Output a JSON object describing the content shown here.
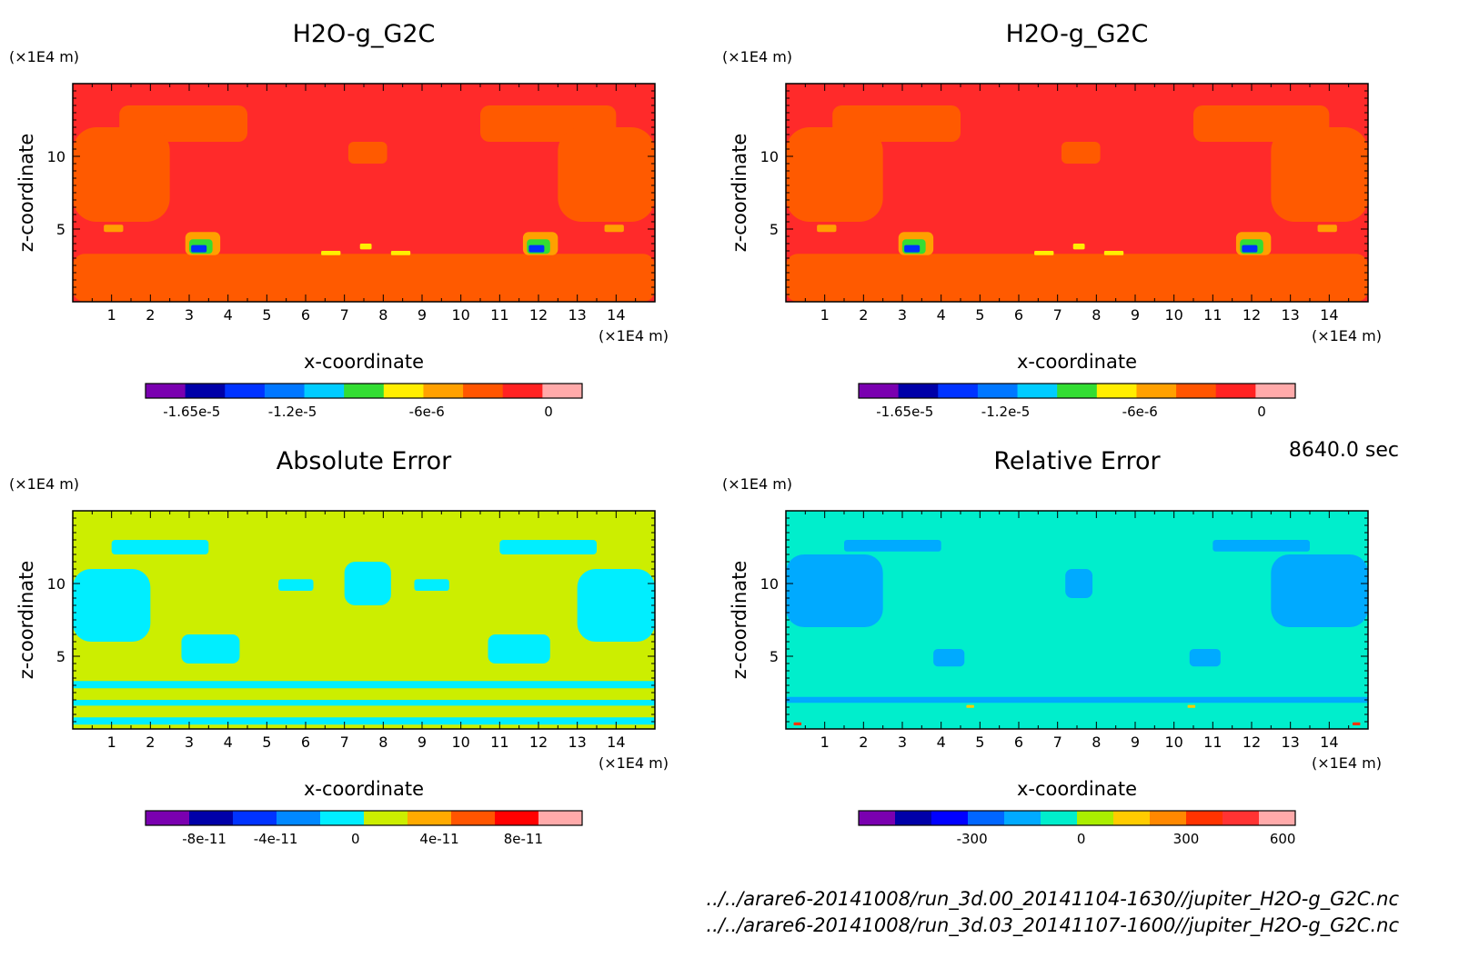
{
  "time_label": "8640.0 sec",
  "file_paths": [
    "../../arare6-20141008/run_3d.00_20141104-1630//jupiter_H2O-g_G2C.nc",
    "../../arare6-20141008/run_3d.03_20141107-1600//jupiter_H2O-g_G2C.nc"
  ],
  "chart_data": [
    {
      "type": "heatmap",
      "title": "H2O-g_G2C",
      "xlabel": "x-coordinate",
      "ylabel": "z-coordinate",
      "x_unit": "(×1E4 m)",
      "y_unit": "(×1E4 m)",
      "xlim": [
        0,
        15
      ],
      "ylim": [
        0,
        15
      ],
      "x_ticks": [
        1,
        2,
        3,
        4,
        5,
        6,
        7,
        8,
        9,
        10,
        11,
        12,
        13,
        14
      ],
      "y_ticks": [
        5,
        10
      ],
      "background_color": "#ff2a2a",
      "colorbar": {
        "colors": [
          "#7a00b0",
          "#0000a8",
          "#0033ff",
          "#0077ff",
          "#00ccff",
          "#33dd33",
          "#ffee00",
          "#ffa000",
          "#ff5500",
          "#ff2222",
          "#ffaaaa"
        ],
        "tick_labels": [
          "-1.65e-5",
          "-1.2e-5",
          "-6e-6",
          "0"
        ]
      },
      "regions": [
        {
          "color": "#ff5a00",
          "x": [
            1.2,
            4.5
          ],
          "z": [
            11,
            13.5
          ]
        },
        {
          "color": "#ff5a00",
          "x": [
            10.5,
            14
          ],
          "z": [
            11,
            13.5
          ]
        },
        {
          "color": "#ff5a00",
          "x": [
            0,
            2.5
          ],
          "z": [
            5.5,
            12
          ]
        },
        {
          "color": "#ff5a00",
          "x": [
            12.5,
            15
          ],
          "z": [
            5.5,
            12
          ]
        },
        {
          "color": "#ff5a00",
          "x": [
            7.1,
            8.1
          ],
          "z": [
            9.5,
            11
          ]
        },
        {
          "color": "#ff5a00",
          "x": [
            0,
            15
          ],
          "z": [
            0,
            3.3
          ]
        },
        {
          "color": "#ffa000",
          "x": [
            2.9,
            3.8
          ],
          "z": [
            3.2,
            4.8
          ]
        },
        {
          "color": "#33dd33",
          "x": [
            3.0,
            3.6
          ],
          "z": [
            3.3,
            4.3
          ]
        },
        {
          "color": "#0033ff",
          "x": [
            3.05,
            3.45
          ],
          "z": [
            3.4,
            3.9
          ]
        },
        {
          "color": "#ffa000",
          "x": [
            11.6,
            12.5
          ],
          "z": [
            3.2,
            4.8
          ]
        },
        {
          "color": "#33dd33",
          "x": [
            11.7,
            12.3
          ],
          "z": [
            3.3,
            4.3
          ]
        },
        {
          "color": "#0033ff",
          "x": [
            11.75,
            12.15
          ],
          "z": [
            3.4,
            3.9
          ]
        },
        {
          "color": "#ffa000",
          "x": [
            0.8,
            1.3
          ],
          "z": [
            4.8,
            5.3
          ]
        },
        {
          "color": "#ffa000",
          "x": [
            13.7,
            14.2
          ],
          "z": [
            4.8,
            5.3
          ]
        },
        {
          "color": "#ffee00",
          "x": [
            6.4,
            6.9
          ],
          "z": [
            3.2,
            3.5
          ]
        },
        {
          "color": "#ffee00",
          "x": [
            7.4,
            7.7
          ],
          "z": [
            3.6,
            4.0
          ]
        },
        {
          "color": "#ffee00",
          "x": [
            8.2,
            8.7
          ],
          "z": [
            3.2,
            3.5
          ]
        }
      ]
    },
    {
      "type": "heatmap",
      "title": "H2O-g_G2C",
      "xlabel": "x-coordinate",
      "ylabel": "z-coordinate",
      "x_unit": "(×1E4 m)",
      "y_unit": "(×1E4 m)",
      "xlim": [
        0,
        15
      ],
      "ylim": [
        0,
        15
      ],
      "x_ticks": [
        1,
        2,
        3,
        4,
        5,
        6,
        7,
        8,
        9,
        10,
        11,
        12,
        13,
        14
      ],
      "y_ticks": [
        5,
        10
      ],
      "background_color": "#ff2a2a",
      "colorbar": {
        "colors": [
          "#7a00b0",
          "#0000a8",
          "#0033ff",
          "#0077ff",
          "#00ccff",
          "#33dd33",
          "#ffee00",
          "#ffa000",
          "#ff5500",
          "#ff2222",
          "#ffaaaa"
        ],
        "tick_labels": [
          "-1.65e-5",
          "-1.2e-5",
          "-6e-6",
          "0"
        ]
      },
      "regions": [
        {
          "color": "#ff5a00",
          "x": [
            1.2,
            4.5
          ],
          "z": [
            11,
            13.5
          ]
        },
        {
          "color": "#ff5a00",
          "x": [
            10.5,
            14
          ],
          "z": [
            11,
            13.5
          ]
        },
        {
          "color": "#ff5a00",
          "x": [
            0,
            2.5
          ],
          "z": [
            5.5,
            12
          ]
        },
        {
          "color": "#ff5a00",
          "x": [
            12.5,
            15
          ],
          "z": [
            5.5,
            12
          ]
        },
        {
          "color": "#ff5a00",
          "x": [
            7.1,
            8.1
          ],
          "z": [
            9.5,
            11
          ]
        },
        {
          "color": "#ff5a00",
          "x": [
            0,
            15
          ],
          "z": [
            0,
            3.3
          ]
        },
        {
          "color": "#ffa000",
          "x": [
            2.9,
            3.8
          ],
          "z": [
            3.2,
            4.8
          ]
        },
        {
          "color": "#33dd33",
          "x": [
            3.0,
            3.6
          ],
          "z": [
            3.3,
            4.3
          ]
        },
        {
          "color": "#0033ff",
          "x": [
            3.05,
            3.45
          ],
          "z": [
            3.4,
            3.9
          ]
        },
        {
          "color": "#ffa000",
          "x": [
            11.6,
            12.5
          ],
          "z": [
            3.2,
            4.8
          ]
        },
        {
          "color": "#33dd33",
          "x": [
            11.7,
            12.3
          ],
          "z": [
            3.3,
            4.3
          ]
        },
        {
          "color": "#0033ff",
          "x": [
            11.75,
            12.15
          ],
          "z": [
            3.4,
            3.9
          ]
        },
        {
          "color": "#ffa000",
          "x": [
            0.8,
            1.3
          ],
          "z": [
            4.8,
            5.3
          ]
        },
        {
          "color": "#ffa000",
          "x": [
            13.7,
            14.2
          ],
          "z": [
            4.8,
            5.3
          ]
        },
        {
          "color": "#ffee00",
          "x": [
            6.4,
            6.9
          ],
          "z": [
            3.2,
            3.5
          ]
        },
        {
          "color": "#ffee00",
          "x": [
            7.4,
            7.7
          ],
          "z": [
            3.6,
            4.0
          ]
        },
        {
          "color": "#ffee00",
          "x": [
            8.2,
            8.7
          ],
          "z": [
            3.2,
            3.5
          ]
        }
      ]
    },
    {
      "type": "heatmap",
      "title": "Absolute Error",
      "xlabel": "x-coordinate",
      "ylabel": "z-coordinate",
      "x_unit": "(×1E4 m)",
      "y_unit": "(×1E4 m)",
      "xlim": [
        0,
        15
      ],
      "ylim": [
        0,
        15
      ],
      "x_ticks": [
        1,
        2,
        3,
        4,
        5,
        6,
        7,
        8,
        9,
        10,
        11,
        12,
        13,
        14
      ],
      "y_ticks": [
        5,
        10
      ],
      "background_color": "#ccee00",
      "colorbar": {
        "colors": [
          "#7a00b0",
          "#0000a8",
          "#0033ff",
          "#0088ff",
          "#00eeff",
          "#ccee00",
          "#ffaa00",
          "#ff5500",
          "#ff0000",
          "#ffaaaa"
        ],
        "tick_labels": [
          "-8e-11",
          "-4e-11",
          "0",
          "4e-11",
          "8e-11"
        ]
      },
      "regions": [
        {
          "color": "#00eeff",
          "x": [
            1,
            3.5
          ],
          "z": [
            12,
            13
          ]
        },
        {
          "color": "#00eeff",
          "x": [
            11,
            13.5
          ],
          "z": [
            12,
            13
          ]
        },
        {
          "color": "#00eeff",
          "x": [
            0,
            2
          ],
          "z": [
            6,
            11
          ]
        },
        {
          "color": "#00eeff",
          "x": [
            13,
            15
          ],
          "z": [
            6,
            11
          ]
        },
        {
          "color": "#00eeff",
          "x": [
            7,
            8.2
          ],
          "z": [
            8.5,
            11.5
          ]
        },
        {
          "color": "#00eeff",
          "x": [
            2.8,
            4.3
          ],
          "z": [
            4.5,
            6.5
          ]
        },
        {
          "color": "#00eeff",
          "x": [
            10.7,
            12.3
          ],
          "z": [
            4.5,
            6.5
          ]
        },
        {
          "color": "#00eeff",
          "x": [
            5.3,
            6.2
          ],
          "z": [
            9.5,
            10.3
          ]
        },
        {
          "color": "#00eeff",
          "x": [
            8.8,
            9.7
          ],
          "z": [
            9.5,
            10.3
          ]
        },
        {
          "color": "#00eeff",
          "x": [
            0,
            15
          ],
          "z": [
            0.3,
            0.8
          ]
        },
        {
          "color": "#00eeff",
          "x": [
            0,
            15
          ],
          "z": [
            1.6,
            2.0
          ]
        },
        {
          "color": "#00eeff",
          "x": [
            0,
            15
          ],
          "z": [
            2.8,
            3.3
          ]
        }
      ]
    },
    {
      "type": "heatmap",
      "title": "Relative Error",
      "xlabel": "x-coordinate",
      "ylabel": "z-coordinate",
      "x_unit": "(×1E4 m)",
      "y_unit": "(×1E4 m)",
      "xlim": [
        0,
        15
      ],
      "ylim": [
        0,
        15
      ],
      "x_ticks": [
        1,
        2,
        3,
        4,
        5,
        6,
        7,
        8,
        9,
        10,
        11,
        12,
        13,
        14
      ],
      "y_ticks": [
        5,
        10
      ],
      "background_color": "#00eecc",
      "colorbar": {
        "colors": [
          "#7a00b0",
          "#0000a8",
          "#0000ff",
          "#0066ff",
          "#00aaff",
          "#00eecc",
          "#aaee00",
          "#ffcc00",
          "#ff8800",
          "#ff3300",
          "#ff3333",
          "#ffaaaa"
        ],
        "tick_labels": [
          "-300",
          "0",
          "300",
          "600"
        ]
      },
      "regions": [
        {
          "color": "#00aaff",
          "x": [
            0,
            2.5
          ],
          "z": [
            7,
            12
          ]
        },
        {
          "color": "#00aaff",
          "x": [
            12.5,
            15
          ],
          "z": [
            7,
            12
          ]
        },
        {
          "color": "#00aaff",
          "x": [
            1.5,
            4
          ],
          "z": [
            12.2,
            13
          ]
        },
        {
          "color": "#00aaff",
          "x": [
            11,
            13.5
          ],
          "z": [
            12.2,
            13
          ]
        },
        {
          "color": "#00aaff",
          "x": [
            7.2,
            7.9
          ],
          "z": [
            9,
            11
          ]
        },
        {
          "color": "#00aaff",
          "x": [
            3.8,
            4.6
          ],
          "z": [
            4.3,
            5.5
          ]
        },
        {
          "color": "#00aaff",
          "x": [
            10.4,
            11.2
          ],
          "z": [
            4.3,
            5.5
          ]
        },
        {
          "color": "#00aaff",
          "x": [
            0,
            15
          ],
          "z": [
            1.8,
            2.2
          ]
        },
        {
          "color": "#ffcc00",
          "x": [
            4.65,
            4.85
          ],
          "z": [
            1.45,
            1.65
          ]
        },
        {
          "color": "#ffcc00",
          "x": [
            10.35,
            10.55
          ],
          "z": [
            1.45,
            1.65
          ]
        },
        {
          "color": "#ff3300",
          "x": [
            0.2,
            0.4
          ],
          "z": [
            0.25,
            0.45
          ]
        },
        {
          "color": "#ff3300",
          "x": [
            14.6,
            14.8
          ],
          "z": [
            0.25,
            0.45
          ]
        }
      ]
    }
  ]
}
